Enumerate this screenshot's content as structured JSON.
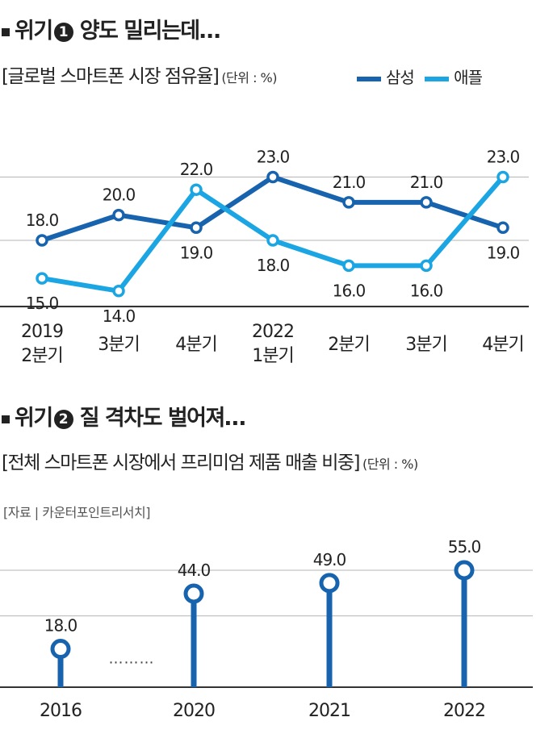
{
  "section1": {
    "title_prefix": "위기",
    "number": "1",
    "title_text": "양도 밀리는데…",
    "subtitle": "[글로벌 스마트폰 시장 점유율]",
    "unit": "(단위 : %)"
  },
  "section2": {
    "title_prefix": "위기",
    "number": "2",
    "title_text": "질 격차도 벌어져…",
    "subtitle": "[전체 스마트폰 시장에서 프리미엄 제품 매출 비중]",
    "unit": "(단위 : %)",
    "source": "[자료 | 카운터포인트리서치]"
  },
  "colors": {
    "samsung": "#1763ad",
    "apple": "#1ba6e3",
    "premium": "#1763ad",
    "grid": "#b5b5b5",
    "axis": "#333333"
  },
  "chart_data": [
    {
      "type": "line",
      "categories": [
        [
          "2019",
          "2분기"
        ],
        [
          "3분기"
        ],
        [
          "4분기"
        ],
        [
          "2022",
          "1분기"
        ],
        [
          "2분기"
        ],
        [
          "3분기"
        ],
        [
          "4분기"
        ]
      ],
      "series": [
        {
          "name": "삼성",
          "values": [
            18.0,
            20.0,
            19.0,
            23.0,
            21.0,
            21.0,
            19.0
          ],
          "labels": [
            "18.0",
            "20.0",
            "19.0",
            "23.0",
            "21.0",
            "21.0",
            "19.0"
          ]
        },
        {
          "name": "애플",
          "values": [
            15.0,
            14.0,
            22.0,
            18.0,
            16.0,
            16.0,
            23.0
          ],
          "labels": [
            "15.0",
            "14.0",
            "22.0",
            "18.0",
            "16.0",
            "16.0",
            "23.0"
          ]
        }
      ],
      "grid": true,
      "legend": "top-right"
    },
    {
      "type": "bar",
      "categories": [
        "2016",
        "2020",
        "2021",
        "2022"
      ],
      "values": [
        18.0,
        44.0,
        49.0,
        55.0
      ],
      "labels": [
        "18.0",
        "44.0",
        "49.0",
        "55.0"
      ],
      "gap_marker": "………",
      "grid": true
    }
  ]
}
